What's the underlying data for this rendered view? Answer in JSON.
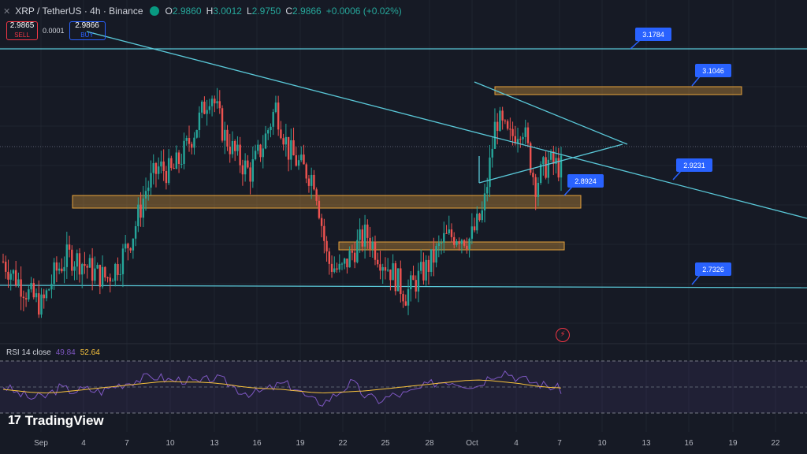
{
  "header": {
    "title": "XRP / TetherUS · 4h · Binance",
    "ohlc_o_label": "O",
    "ohlc_o": "2.9860",
    "ohlc_h_label": "H",
    "ohlc_h": "3.0012",
    "ohlc_l_label": "L",
    "ohlc_l": "2.9750",
    "ohlc_c_label": "C",
    "ohlc_c": "2.9866",
    "change": "+0.0006 (+0.02%)"
  },
  "trade": {
    "sell_price": "2.9865",
    "sell_label": "SELL",
    "spread": "0.0001",
    "buy_price": "2.9866",
    "buy_label": "BUY"
  },
  "rsi": {
    "label": "RSI 14 close",
    "rsi_value": "49.84",
    "ma_value": "52.64"
  },
  "brand": {
    "name": "TradingView"
  },
  "colors": {
    "background": "#161a25",
    "up": "#26a69a",
    "down": "#ef5350",
    "line": "#5ac8d8",
    "zone_stroke": "#e6a23c",
    "label_bg": "#2962ff",
    "rsi_line": "#7e57c2",
    "rsi_ma": "#f7c23c"
  },
  "chart_data": {
    "type": "candlestick",
    "x_tick_labels": [
      "Sep",
      "4",
      "7",
      "10",
      "13",
      "16",
      "19",
      "22",
      "25",
      "28",
      "Oct",
      "4",
      "7",
      "10",
      "13",
      "16",
      "19",
      "22"
    ],
    "price_labels": [
      "3.1784",
      "3.1046",
      "2.9231",
      "2.8924",
      "2.7326"
    ],
    "close_trend": [
      2.82,
      2.79,
      2.76,
      2.74,
      2.8,
      2.83,
      2.82,
      2.8,
      2.79,
      2.82,
      2.87,
      2.95,
      2.99,
      2.98,
      3.02,
      3.07,
      3.13,
      3.05,
      3.01,
      2.98,
      3.03,
      3.1,
      3.02,
      2.99,
      2.97,
      2.82,
      2.8,
      2.84,
      2.87,
      2.83,
      2.8,
      2.76,
      2.79,
      2.82,
      2.86,
      2.87,
      2.86,
      2.91,
      3.08,
      3.04,
      3.07,
      2.96,
      3.0,
      2.99
    ],
    "rsi_series": [
      55,
      45,
      38,
      40,
      52,
      48,
      50,
      47,
      55,
      60,
      65,
      68,
      62,
      64,
      58,
      66,
      60,
      48,
      44,
      50,
      58,
      52,
      35,
      32,
      45,
      60,
      40,
      35,
      42,
      44,
      52,
      60,
      62,
      58,
      55,
      70,
      75,
      65,
      60,
      55,
      50
    ],
    "rsi_ma_series": [
      50,
      48,
      46,
      45,
      46,
      48,
      50,
      52,
      54,
      56,
      58,
      60,
      61,
      60,
      60,
      59,
      57,
      54,
      52,
      51,
      50,
      48,
      46,
      45,
      46,
      47,
      48,
      50,
      52,
      54,
      56,
      58,
      60,
      62,
      63,
      62,
      60,
      58,
      55,
      53,
      52
    ],
    "rsi_ylim": [
      0,
      100
    ],
    "grid": true
  }
}
